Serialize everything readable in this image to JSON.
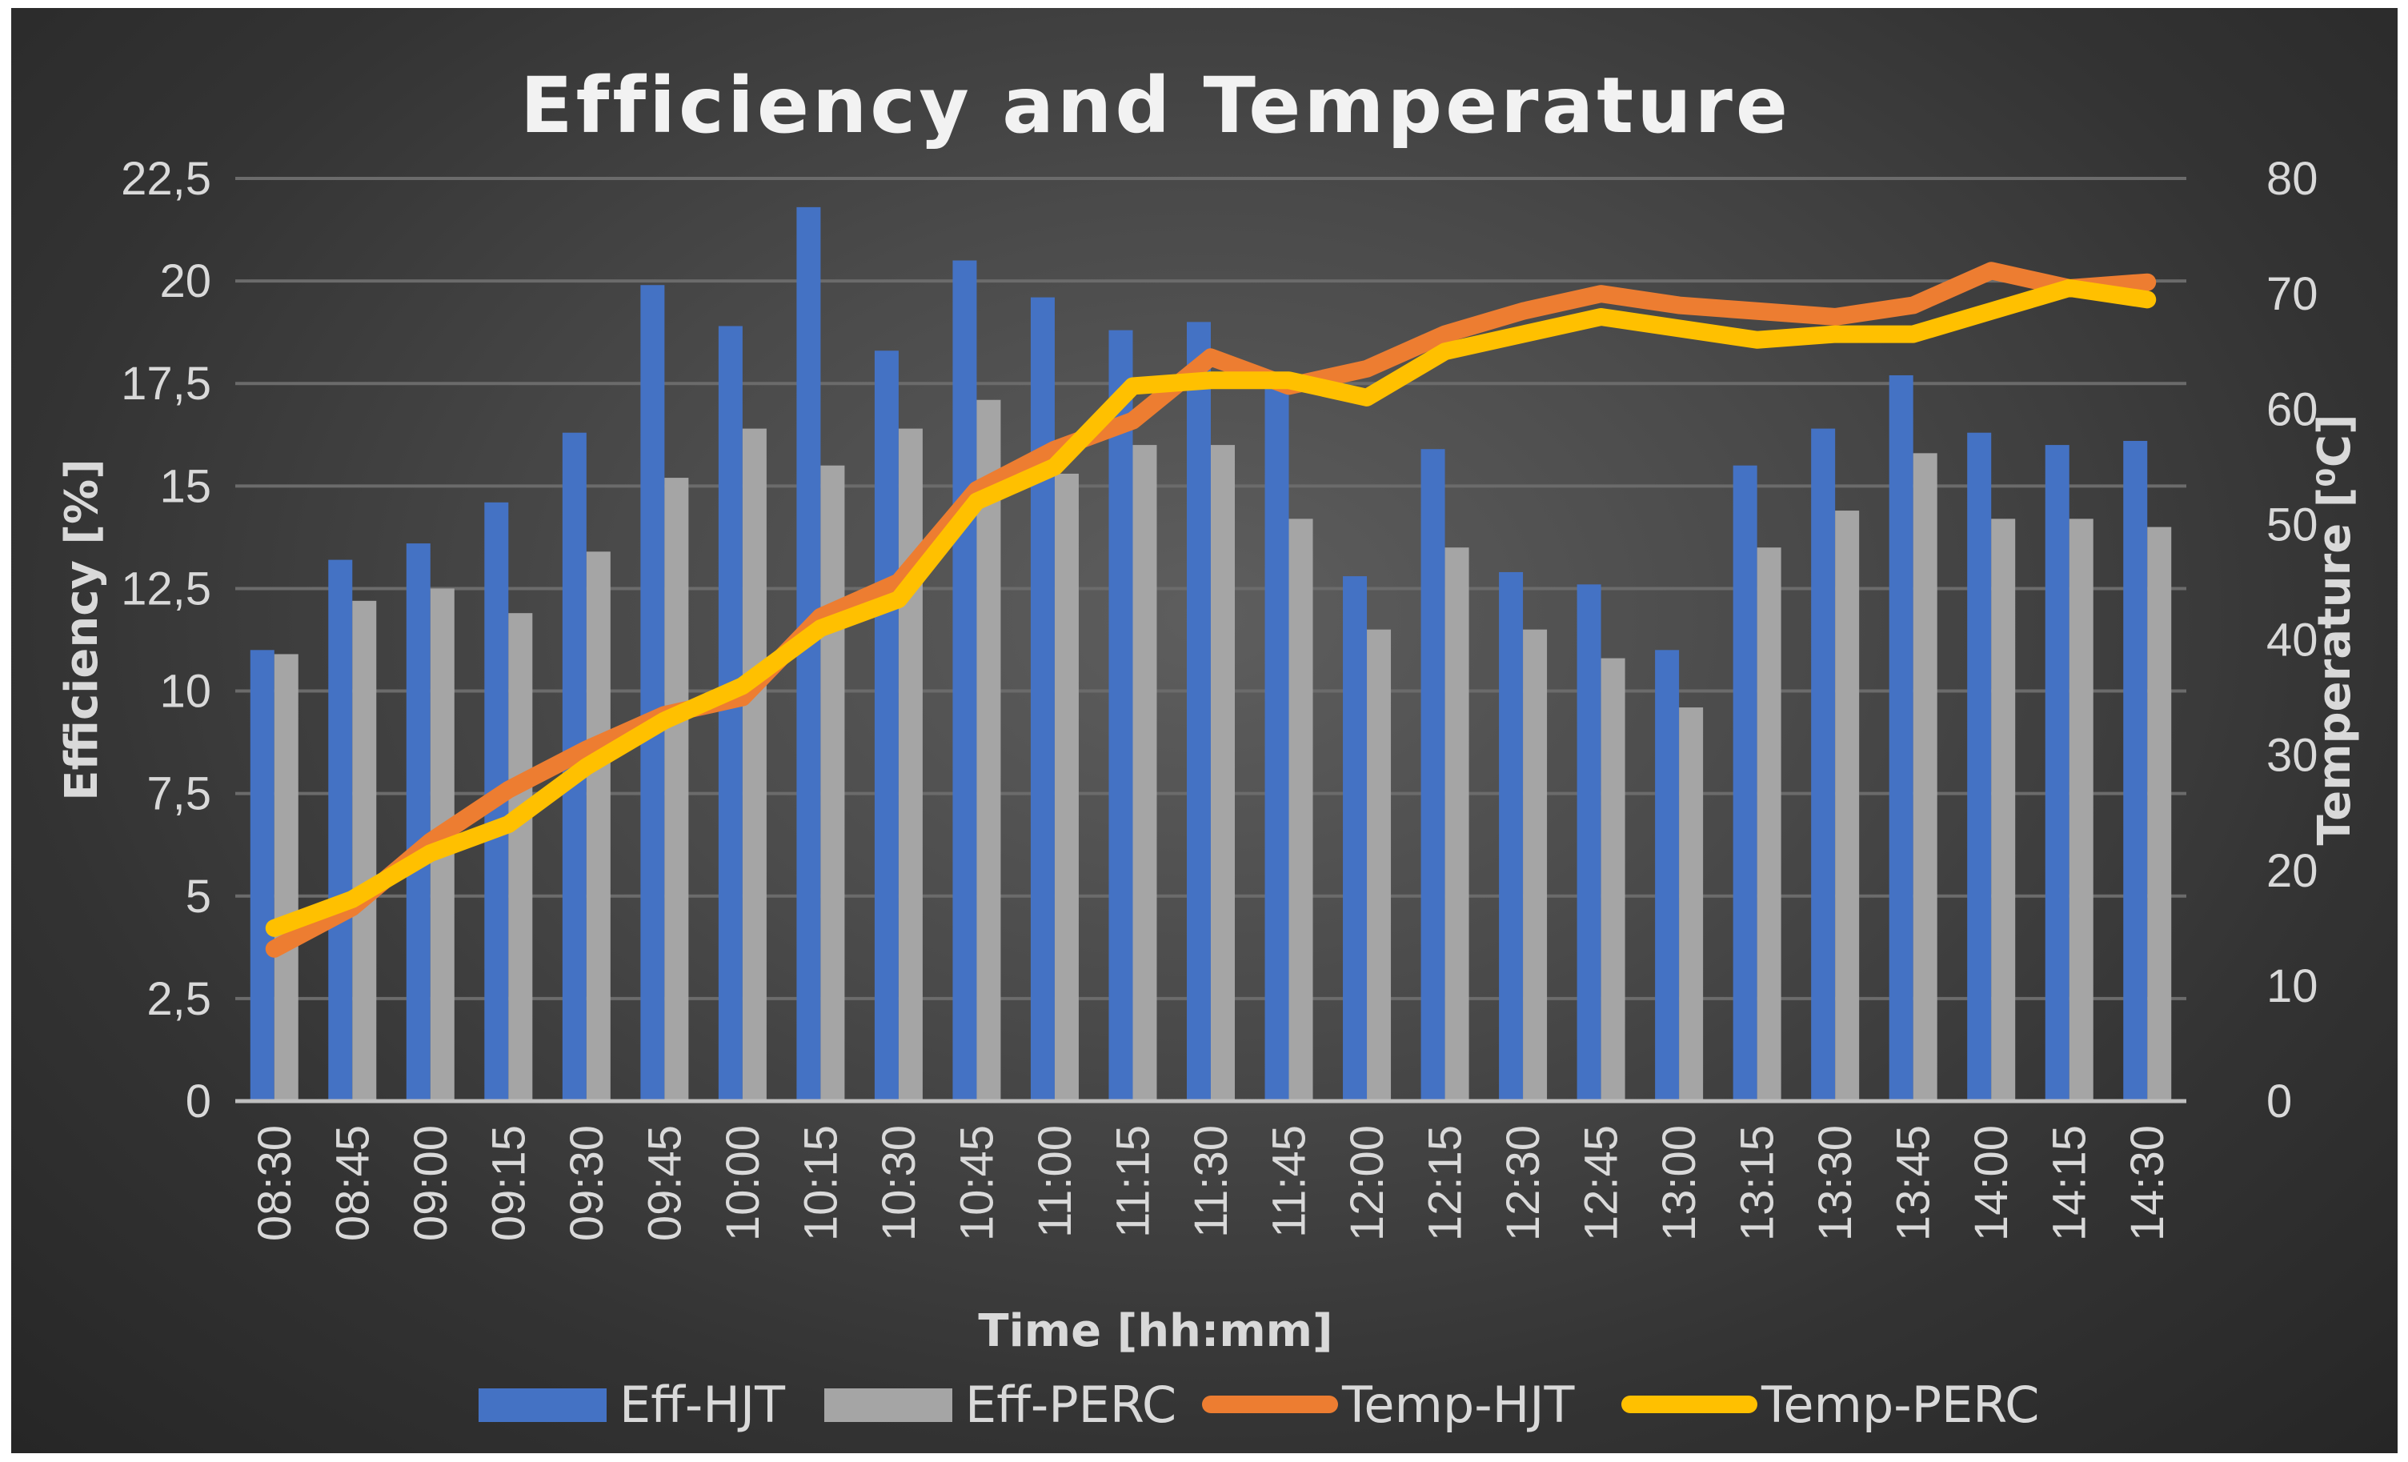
{
  "chart_data": {
    "type": "bar+line",
    "title": "Efficiency and Temperature",
    "xlabel": "Time [hh:mm]",
    "ylabel": "Efficiency [%]",
    "y2label": "Temperature [⁰C]",
    "ylim": [
      0,
      22.5
    ],
    "y2lim": [
      0,
      80
    ],
    "y_ticks": [
      "0",
      "2,5",
      "5",
      "7,5",
      "10",
      "12,5",
      "15",
      "17,5",
      "20",
      "22,5"
    ],
    "y2_ticks": [
      "0",
      "10",
      "20",
      "30",
      "40",
      "50",
      "60",
      "70",
      "80"
    ],
    "grid": true,
    "legend_position": "bottom",
    "categories": [
      "08:30",
      "08:45",
      "09:00",
      "09:15",
      "09:30",
      "09:45",
      "10:00",
      "10:15",
      "10:30",
      "10:45",
      "11:00",
      "11:15",
      "11:30",
      "11:45",
      "12:00",
      "12:15",
      "12:30",
      "12:45",
      "13:00",
      "13:15",
      "13:30",
      "13:45",
      "14:00",
      "14:15",
      "14:30"
    ],
    "series": [
      {
        "name": "Eff-HJT",
        "kind": "bar",
        "axis": "left",
        "color": "#4472c4",
        "values": [
          11.0,
          13.2,
          13.6,
          14.6,
          16.3,
          19.9,
          18.9,
          21.8,
          18.3,
          20.5,
          19.6,
          18.8,
          19.0,
          17.4,
          12.8,
          15.9,
          12.9,
          12.6,
          11.0,
          15.5,
          16.4,
          17.7,
          16.3,
          16.0,
          16.1
        ]
      },
      {
        "name": "Eff-PERC",
        "kind": "bar",
        "axis": "left",
        "color": "#a5a5a5",
        "values": [
          10.9,
          12.2,
          12.5,
          11.9,
          13.4,
          15.2,
          16.4,
          15.5,
          16.4,
          17.1,
          15.3,
          16.0,
          16.0,
          14.2,
          11.5,
          13.5,
          11.5,
          10.8,
          9.6,
          13.5,
          14.4,
          15.8,
          14.2,
          14.2,
          14.0
        ]
      },
      {
        "name": "Temp-HJT",
        "kind": "line",
        "axis": "right",
        "color": "#ed7d31",
        "values": [
          13.2,
          16.8,
          22.5,
          27.0,
          30.5,
          33.5,
          35.0,
          42.0,
          45.0,
          53.0,
          56.5,
          59.0,
          64.5,
          62.0,
          63.5,
          66.5,
          68.5,
          70.0,
          69.0,
          68.5,
          68.0,
          69.0,
          72.0,
          70.5,
          71.0
        ]
      },
      {
        "name": "Temp-PERC",
        "kind": "line",
        "axis": "right",
        "color": "#ffc000",
        "values": [
          15.0,
          17.5,
          21.5,
          24.0,
          29.0,
          33.0,
          36.0,
          41.0,
          43.5,
          52.0,
          55.0,
          62.0,
          62.5,
          62.5,
          61.0,
          65.0,
          66.5,
          68.0,
          67.0,
          66.0,
          66.5,
          66.5,
          68.5,
          70.5,
          69.5
        ]
      }
    ]
  }
}
